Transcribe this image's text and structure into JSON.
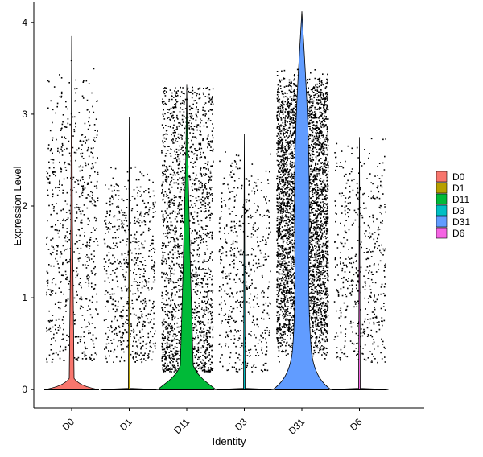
{
  "chart_data": {
    "type": "violin",
    "xlabel": "Identity",
    "ylabel": "Expression Level",
    "ylim": [
      -0.2,
      4.2
    ],
    "yticks": [
      0,
      1,
      2,
      3,
      4
    ],
    "grid": false,
    "legend_position": "right",
    "categories": [
      "D0",
      "D1",
      "D11",
      "D3",
      "D31",
      "D6"
    ],
    "series": [
      {
        "name": "D0",
        "color": "#F8766D",
        "max": 3.85,
        "jitter_points": 700,
        "value_range": [
          0.3,
          3.5
        ]
      },
      {
        "name": "D1",
        "color": "#B79F00",
        "max": 2.97,
        "jitter_points": 650,
        "value_range": [
          0.3,
          2.4
        ]
      },
      {
        "name": "D11",
        "color": "#00BA38",
        "max": 3.32,
        "jitter_points": 1900,
        "value_range": [
          0.2,
          3.3
        ]
      },
      {
        "name": "D3",
        "color": "#00BFC4",
        "max": 2.78,
        "jitter_points": 550,
        "value_range": [
          0.2,
          2.6
        ]
      },
      {
        "name": "D31",
        "color": "#619CFF",
        "max": 4.12,
        "jitter_points": 4200,
        "value_range": [
          0.3,
          4.1
        ]
      },
      {
        "name": "D6",
        "color": "#F564E3",
        "max": 2.75,
        "jitter_points": 500,
        "value_range": [
          0.3,
          2.7
        ]
      }
    ]
  }
}
